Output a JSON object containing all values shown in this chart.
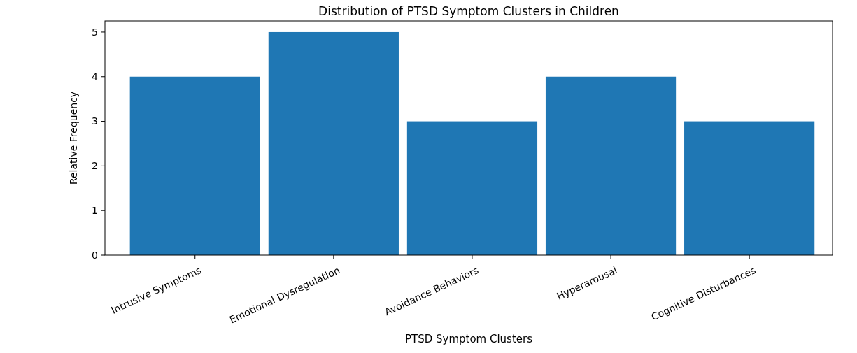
{
  "chart_data": {
    "type": "bar",
    "title": "Distribution of PTSD Symptom Clusters in Children",
    "xlabel": "PTSD Symptom Clusters",
    "ylabel": "Relative Frequency",
    "categories": [
      "Intrusive Symptoms",
      "Emotional Dysregulation",
      "Avoidance Behaviors",
      "Hyperarousal",
      "Cognitive Disturbances"
    ],
    "values": [
      4,
      5,
      3,
      4,
      3
    ],
    "color": "#1f77b4",
    "ylim": [
      0,
      5.25
    ],
    "yticks": [
      0,
      1,
      2,
      3,
      4,
      5
    ],
    "grid": false
  }
}
